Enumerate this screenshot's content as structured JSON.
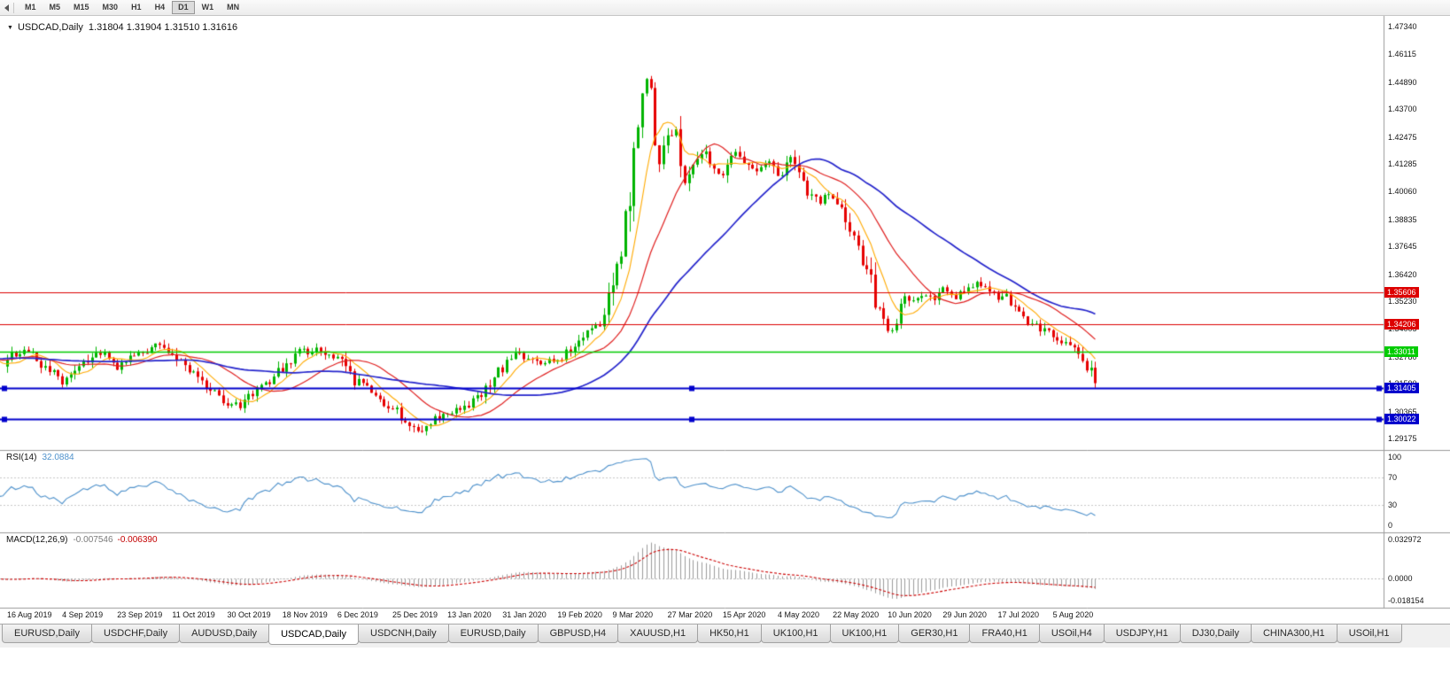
{
  "toolbar": {
    "timeframes": [
      "M1",
      "M5",
      "M15",
      "M30",
      "H1",
      "H4",
      "D1",
      "W1",
      "MN"
    ],
    "active": "D1"
  },
  "chart": {
    "title": {
      "symbol": "USDCAD,Daily",
      "ohlc": "1.31804 1.31904 1.31510 1.31616"
    },
    "price_axis": [
      {
        "text": "1.47340",
        "value": 1.4734
      },
      {
        "text": "1.46115",
        "value": 1.46115
      },
      {
        "text": "1.44890",
        "value": 1.4489
      },
      {
        "text": "1.43700",
        "value": 1.437
      },
      {
        "text": "1.42475",
        "value": 1.42475
      },
      {
        "text": "1.41285",
        "value": 1.41285
      },
      {
        "text": "1.40060",
        "value": 1.4006
      },
      {
        "text": "1.38835",
        "value": 1.38835
      },
      {
        "text": "1.37645",
        "value": 1.37645
      },
      {
        "text": "1.36420",
        "value": 1.3642
      },
      {
        "text": "1.35230",
        "value": 1.3523
      },
      {
        "text": "1.34005",
        "value": 1.34005
      },
      {
        "text": "1.32780",
        "value": 1.3278
      },
      {
        "text": "1.31590",
        "value": 1.3159
      },
      {
        "text": "1.30365",
        "value": 1.30365
      },
      {
        "text": "1.29175",
        "value": 1.29175
      }
    ],
    "hlines": [
      {
        "label": "1.35606",
        "value": 1.35606,
        "color": "#dd0000",
        "width": 1,
        "selected": false
      },
      {
        "label": "1.34206",
        "value": 1.34206,
        "color": "#dd0000",
        "width": 1,
        "selected": false
      },
      {
        "label": "1.33011",
        "value": 1.33011,
        "color": "#00cc00",
        "width": 1.4,
        "selected": false
      },
      {
        "label": "1.31405",
        "value": 1.31405,
        "color": "#0000cc",
        "width": 1.8,
        "selected": true
      },
      {
        "label": "1.30022",
        "value": 1.30022,
        "color": "#0000cc",
        "width": 1.8,
        "selected": true
      }
    ],
    "dates": [
      "16 Aug 2019",
      "4 Sep 2019",
      "23 Sep 2019",
      "11 Oct 2019",
      "30 Oct 2019",
      "18 Nov 2019",
      "6 Dec 2019",
      "25 Dec 2019",
      "13 Jan 2020",
      "31 Jan 2020",
      "19 Feb 2020",
      "9 Mar 2020",
      "27 Mar 2020",
      "15 Apr 2020",
      "4 May 2020",
      "22 May 2020",
      "10 Jun 2020",
      "29 Jun 2020",
      "17 Jul 2020",
      "5 Aug 2020"
    ]
  },
  "rsi": {
    "name": "RSI(14)",
    "value": "32.0884",
    "levels": [
      {
        "text": "100",
        "value": 100
      },
      {
        "text": "70",
        "value": 70
      },
      {
        "text": "30",
        "value": 30
      },
      {
        "text": "0",
        "value": 0
      }
    ]
  },
  "macd": {
    "name": "MACD(12,26,9)",
    "main": "-0.007546",
    "signal": "-0.006390",
    "axis": [
      {
        "text": "0.032972",
        "value": 0.032972
      },
      {
        "text": "0.0000",
        "value": 0
      },
      {
        "text": "-0.018154",
        "value": -0.018154
      }
    ]
  },
  "tabs": [
    {
      "label": "EURUSD,Daily",
      "active": false
    },
    {
      "label": "USDCHF,Daily",
      "active": false
    },
    {
      "label": "AUDUSD,Daily",
      "active": false
    },
    {
      "label": "USDCAD,Daily",
      "active": true
    },
    {
      "label": "USDCNH,Daily",
      "active": false
    },
    {
      "label": "EURUSD,Daily",
      "active": false
    },
    {
      "label": "GBPUSD,H4",
      "active": false
    },
    {
      "label": "XAUUSD,H1",
      "active": false
    },
    {
      "label": "HK50,H1",
      "active": false
    },
    {
      "label": "UK100,H1",
      "active": false
    },
    {
      "label": "UK100,H1",
      "active": false
    },
    {
      "label": "GER30,H1",
      "active": false
    },
    {
      "label": "FRA40,H1",
      "active": false
    },
    {
      "label": "USOil,H4",
      "active": false
    },
    {
      "label": "USDJPY,H1",
      "active": false
    },
    {
      "label": "DJ30,Daily",
      "active": false
    },
    {
      "label": "CHINA300,H1",
      "active": false
    },
    {
      "label": "USOil,H1",
      "active": false
    }
  ],
  "chart_data": {
    "type": "candlestick",
    "symbol": "USDCAD",
    "period": "Daily",
    "n": 258,
    "step": 4.78,
    "seed": 99,
    "price_top": 1.4734,
    "price_bottom": 1.29175,
    "last_close": 1.31616,
    "rsi_period": 14,
    "macd_periods": [
      12,
      26,
      9
    ],
    "ma_periods": {
      "fast": 8,
      "mid": 20,
      "slow": 45
    },
    "macd_max": 0.032972,
    "macd_min": -0.018154,
    "anchors": [
      [
        0,
        1.327
      ],
      [
        4,
        1.332
      ],
      [
        8,
        1.325
      ],
      [
        13,
        1.317
      ],
      [
        17,
        1.323
      ],
      [
        22,
        1.33
      ],
      [
        26,
        1.3235
      ],
      [
        30,
        1.329
      ],
      [
        35,
        1.3325
      ],
      [
        39,
        1.33
      ],
      [
        43,
        1.321
      ],
      [
        48,
        1.313
      ],
      [
        52,
        1.308
      ],
      [
        55,
        1.305
      ],
      [
        58,
        1.311
      ],
      [
        62,
        1.317
      ],
      [
        65,
        1.323
      ],
      [
        69,
        1.33
      ],
      [
        73,
        1.3305
      ],
      [
        78,
        1.328
      ],
      [
        82,
        1.317
      ],
      [
        86,
        1.313
      ],
      [
        91,
        1.305
      ],
      [
        95,
        1.298
      ],
      [
        97,
        1.2958
      ],
      [
        100,
        1.2995
      ],
      [
        104,
        1.304
      ],
      [
        108,
        1.3055
      ],
      [
        112,
        1.31
      ],
      [
        117,
        1.323
      ],
      [
        121,
        1.329
      ],
      [
        126,
        1.326
      ],
      [
        130,
        1.327
      ],
      [
        134,
        1.332
      ],
      [
        138,
        1.34
      ],
      [
        141,
        1.3445
      ],
      [
        143,
        1.36
      ],
      [
        145,
        1.3745
      ],
      [
        147,
        1.398
      ],
      [
        149,
        1.434
      ],
      [
        151,
        1.452
      ],
      [
        152,
        1.442
      ],
      [
        154,
        1.414
      ],
      [
        156,
        1.426
      ],
      [
        158,
        1.428
      ],
      [
        160,
        1.406
      ],
      [
        164,
        1.418
      ],
      [
        169,
        1.407
      ],
      [
        172,
        1.417
      ],
      [
        176,
        1.409
      ],
      [
        180,
        1.413
      ],
      [
        182,
        1.4075
      ],
      [
        185,
        1.415
      ],
      [
        189,
        1.401
      ],
      [
        192,
        1.397
      ],
      [
        195,
        1.3985
      ],
      [
        198,
        1.39
      ],
      [
        201,
        1.377
      ],
      [
        204,
        1.361
      ],
      [
        206,
        1.347
      ],
      [
        208,
        1.34
      ],
      [
        210,
        1.343
      ],
      [
        212,
        1.3555
      ],
      [
        214,
        1.352
      ],
      [
        217,
        1.356
      ],
      [
        219,
        1.3535
      ],
      [
        221,
        1.358
      ],
      [
        224,
        1.3545
      ],
      [
        227,
        1.357
      ],
      [
        230,
        1.36
      ],
      [
        232,
        1.3565
      ],
      [
        234,
        1.3535
      ],
      [
        236,
        1.356
      ],
      [
        238,
        1.349
      ],
      [
        241,
        1.3425
      ],
      [
        244,
        1.34
      ],
      [
        247,
        1.3365
      ],
      [
        249,
        1.334
      ],
      [
        251,
        1.333
      ],
      [
        253,
        1.329
      ],
      [
        255,
        1.3235
      ],
      [
        257,
        1.3162
      ]
    ],
    "colors": {
      "up": "#00b400",
      "down": "#e60000",
      "ma_fast": "#ffaa00",
      "ma_mid": "#e02020",
      "ma_slow": "#2525cc",
      "rsi": "#4f92cc",
      "rsi_level": "#c9c9c9",
      "macd_hist": "#9c9c9c",
      "macd_signal": "#cc0000",
      "macd_zero": "#bbbbbb",
      "divider": "#9a9a9a"
    }
  }
}
